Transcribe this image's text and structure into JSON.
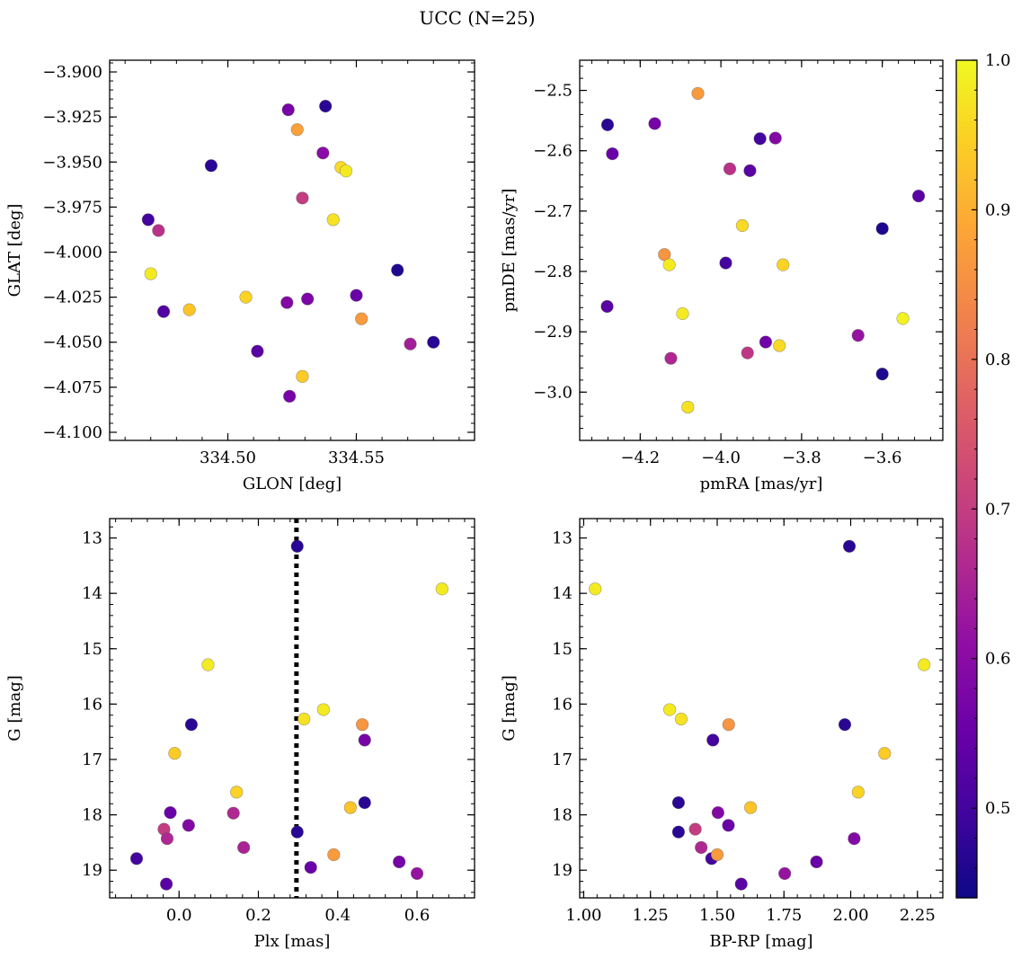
{
  "figure": {
    "title": "UCC (N=25)"
  },
  "colorbar": {
    "colormap": "plasma",
    "min": 0.44,
    "max": 1.0,
    "ticks": [
      0.5,
      0.6,
      0.7,
      0.8,
      0.9,
      1.0
    ],
    "tick_labels": [
      "0.5",
      "0.6",
      "0.7",
      "0.8",
      "0.9",
      "1.0"
    ]
  },
  "chart_data": [
    {
      "type": "scatter",
      "xlabel": "GLON [deg]",
      "ylabel": "GLAT [deg]",
      "xlim": [
        334.454,
        334.596
      ],
      "ylim": [
        -4.1045,
        -3.8935
      ],
      "xticks": [
        334.5,
        334.55
      ],
      "xtick_labels": [
        "334.50",
        "334.55"
      ],
      "yticks": [
        -3.9,
        -3.925,
        -3.95,
        -3.975,
        -4.0,
        -4.025,
        -4.05,
        -4.075,
        -4.1
      ],
      "ytick_labels": [
        "−3.900",
        "−3.925",
        "−3.950",
        "−3.975",
        "−4.000",
        "−4.025",
        "−4.050",
        "−4.075",
        "−4.100"
      ],
      "x": [
        334.5235,
        334.538,
        334.527,
        334.537,
        334.544,
        334.546,
        334.4935,
        334.529,
        334.469,
        334.541,
        334.473,
        334.566,
        334.47,
        334.507,
        334.523,
        334.531,
        334.55,
        334.475,
        334.485,
        334.552,
        334.571,
        334.58,
        334.5115,
        334.529,
        334.524
      ],
      "y": [
        -3.921,
        -3.919,
        -3.932,
        -3.945,
        -3.953,
        -3.955,
        -3.952,
        -3.97,
        -3.982,
        -3.982,
        -3.988,
        -4.01,
        -4.012,
        -4.025,
        -4.028,
        -4.026,
        -4.024,
        -4.033,
        -4.032,
        -4.037,
        -4.051,
        -4.05,
        -4.055,
        -4.069,
        -4.08
      ],
      "c": [
        0.57,
        0.47,
        0.88,
        0.6,
        0.96,
        0.98,
        0.47,
        0.7,
        0.5,
        0.97,
        0.68,
        0.46,
        0.98,
        0.95,
        0.59,
        0.58,
        0.55,
        0.52,
        0.93,
        0.87,
        0.64,
        0.47,
        0.53,
        0.94,
        0.57
      ]
    },
    {
      "type": "scatter",
      "xlabel": "pmRA [mas/yr]",
      "ylabel": "pmDE [mas/yr]",
      "xlim": [
        -4.35,
        -3.45
      ],
      "ylim": [
        -3.08,
        -2.45
      ],
      "xticks": [
        -4.2,
        -4.0,
        -3.8,
        -3.6
      ],
      "xtick_labels": [
        "−4.2",
        "−4.0",
        "−3.8",
        "−3.6"
      ],
      "yticks": [
        -2.5,
        -2.6,
        -2.7,
        -2.8,
        -2.9,
        -3.0
      ],
      "ytick_labels": [
        "−2.5",
        "−2.6",
        "−2.7",
        "−2.8",
        "−2.9",
        "−3.0"
      ],
      "x": [
        -4.057,
        -4.281,
        -4.164,
        -4.269,
        -3.903,
        -3.865,
        -3.978,
        -3.928,
        -3.51,
        -3.6,
        -3.947,
        -4.14,
        -4.128,
        -3.988,
        -3.846,
        -4.282,
        -4.095,
        -3.549,
        -3.66,
        -3.889,
        -3.855,
        -3.934,
        -4.124,
        -3.6,
        -4.082
      ],
      "y": [
        -2.505,
        -2.557,
        -2.555,
        -2.605,
        -2.58,
        -2.579,
        -2.63,
        -2.633,
        -2.675,
        -2.729,
        -2.724,
        -2.772,
        -2.789,
        -2.786,
        -2.789,
        -2.858,
        -2.87,
        -2.878,
        -2.906,
        -2.917,
        -2.923,
        -2.935,
        -2.944,
        -2.97,
        -3.025
      ],
      "c": [
        0.87,
        0.47,
        0.57,
        0.55,
        0.5,
        0.59,
        0.68,
        0.53,
        0.53,
        0.46,
        0.96,
        0.86,
        0.98,
        0.5,
        0.95,
        0.53,
        0.98,
        0.99,
        0.62,
        0.56,
        0.96,
        0.69,
        0.66,
        0.46,
        0.97
      ]
    },
    {
      "type": "scatter",
      "xlabel": "Plx [mas]",
      "ylabel": "G [mag]",
      "xlim": [
        -0.175,
        0.745
      ],
      "ylim": [
        19.5,
        12.65
      ],
      "xticks": [
        0.0,
        0.2,
        0.4,
        0.6
      ],
      "xtick_labels": [
        "0.0",
        "0.2",
        "0.4",
        "0.6"
      ],
      "yticks": [
        13,
        14,
        15,
        16,
        17,
        18,
        19
      ],
      "ytick_labels": [
        "13",
        "14",
        "15",
        "16",
        "17",
        "18",
        "19"
      ],
      "vline": {
        "x": 0.296,
        "style": "dotted"
      },
      "x": [
        0.298,
        0.663,
        0.073,
        0.315,
        0.364,
        0.031,
        0.462,
        0.468,
        -0.011,
        0.145,
        0.468,
        0.432,
        -0.022,
        0.137,
        0.024,
        -0.038,
        0.298,
        -0.03,
        0.163,
        0.39,
        0.332,
        -0.107,
        0.555,
        0.6,
        -0.032
      ],
      "y": [
        13.15,
        13.92,
        15.29,
        16.27,
        16.1,
        16.37,
        16.37,
        16.65,
        16.89,
        17.59,
        17.78,
        17.87,
        17.96,
        17.97,
        18.19,
        18.26,
        18.31,
        18.43,
        18.59,
        18.72,
        18.95,
        18.79,
        18.85,
        19.06,
        19.25
      ],
      "c": [
        0.47,
        0.98,
        0.98,
        0.97,
        0.98,
        0.47,
        0.86,
        0.57,
        0.94,
        0.95,
        0.47,
        0.93,
        0.55,
        0.66,
        0.59,
        0.7,
        0.47,
        0.66,
        0.65,
        0.87,
        0.55,
        0.5,
        0.57,
        0.62,
        0.53
      ]
    },
    {
      "type": "scatter",
      "xlabel": "BP-RP [mag]",
      "ylabel": "G [mag]",
      "xlim": [
        0.985,
        2.345
      ],
      "ylim": [
        19.5,
        12.65
      ],
      "xticks": [
        1.0,
        1.25,
        1.5,
        1.75,
        2.0,
        2.25
      ],
      "xtick_labels": [
        "1.00",
        "1.25",
        "1.50",
        "1.75",
        "2.00",
        "2.25"
      ],
      "yticks": [
        13,
        14,
        15,
        16,
        17,
        18,
        19
      ],
      "ytick_labels": [
        "13",
        "14",
        "15",
        "16",
        "17",
        "18",
        "19"
      ],
      "x": [
        1.995,
        1.043,
        2.275,
        1.322,
        1.365,
        1.543,
        1.978,
        1.484,
        2.127,
        2.028,
        1.355,
        1.625,
        1.503,
        1.542,
        1.355,
        1.418,
        1.44,
        2.013,
        1.479,
        1.5,
        1.872,
        1.753,
        1.59
      ],
      "y": [
        13.15,
        13.92,
        15.29,
        16.1,
        16.27,
        16.37,
        16.37,
        16.65,
        16.89,
        17.59,
        17.78,
        17.87,
        17.96,
        18.19,
        18.31,
        18.26,
        18.59,
        18.43,
        18.79,
        18.72,
        18.85,
        19.06,
        19.25
      ],
      "c": [
        0.47,
        0.98,
        0.98,
        0.98,
        0.97,
        0.86,
        0.47,
        0.5,
        0.94,
        0.95,
        0.47,
        0.93,
        0.59,
        0.55,
        0.47,
        0.7,
        0.66,
        0.59,
        0.5,
        0.87,
        0.55,
        0.62,
        0.53
      ]
    }
  ]
}
